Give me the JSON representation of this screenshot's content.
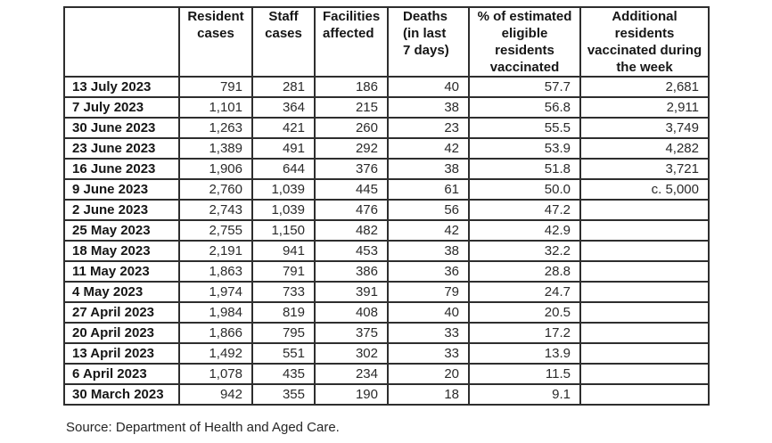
{
  "table": {
    "columns": [
      {
        "label": ""
      },
      {
        "label": "Resident\ncases"
      },
      {
        "label": "Staff\ncases"
      },
      {
        "label": "Facilities\naffected"
      },
      {
        "label": "Deaths\n(in last\n7 days)"
      },
      {
        "label": "% of estimated\neligible\nresidents\nvaccinated"
      },
      {
        "label": "Additional\nresidents\nvaccinated during\nthe week"
      }
    ],
    "rows": [
      {
        "date": "13 July 2023",
        "values": [
          "791",
          "281",
          "186",
          "40",
          "57.7",
          "2,681"
        ]
      },
      {
        "date": "7 July 2023",
        "values": [
          "1,101",
          "364",
          "215",
          "38",
          "56.8",
          "2,911"
        ]
      },
      {
        "date": "30 June 2023",
        "values": [
          "1,263",
          "421",
          "260",
          "23",
          "55.5",
          "3,749"
        ]
      },
      {
        "date": "23 June 2023",
        "values": [
          "1,389",
          "491",
          "292",
          "42",
          "53.9",
          "4,282"
        ]
      },
      {
        "date": "16 June 2023",
        "values": [
          "1,906",
          "644",
          "376",
          "38",
          "51.8",
          "3,721"
        ]
      },
      {
        "date": "9 June 2023",
        "values": [
          "2,760",
          "1,039",
          "445",
          "61",
          "50.0",
          "c. 5,000"
        ]
      },
      {
        "date": "2 June 2023",
        "values": [
          "2,743",
          "1,039",
          "476",
          "56",
          "47.2",
          ""
        ]
      },
      {
        "date": "25 May 2023",
        "values": [
          "2,755",
          "1,150",
          "482",
          "42",
          "42.9",
          ""
        ]
      },
      {
        "date": "18 May 2023",
        "values": [
          "2,191",
          "941",
          "453",
          "38",
          "32.2",
          ""
        ]
      },
      {
        "date": "11 May 2023",
        "values": [
          "1,863",
          "791",
          "386",
          "36",
          "28.8",
          ""
        ]
      },
      {
        "date": "4 May 2023",
        "values": [
          "1,974",
          "733",
          "391",
          "79",
          "24.7",
          ""
        ]
      },
      {
        "date": "27 April 2023",
        "values": [
          "1,984",
          "819",
          "408",
          "40",
          "20.5",
          ""
        ]
      },
      {
        "date": "20 April 2023",
        "values": [
          "1,866",
          "795",
          "375",
          "33",
          "17.2",
          ""
        ]
      },
      {
        "date": "13 April 2023",
        "values": [
          "1,492",
          "551",
          "302",
          "33",
          "13.9",
          ""
        ]
      },
      {
        "date": "6 April 2023",
        "values": [
          "1,078",
          "435",
          "234",
          "20",
          "11.5",
          ""
        ]
      },
      {
        "date": "30 March 2023",
        "values": [
          "942",
          "355",
          "190",
          "18",
          "9.1",
          ""
        ]
      }
    ]
  },
  "source": "Source: Department of Health and Aged Care."
}
